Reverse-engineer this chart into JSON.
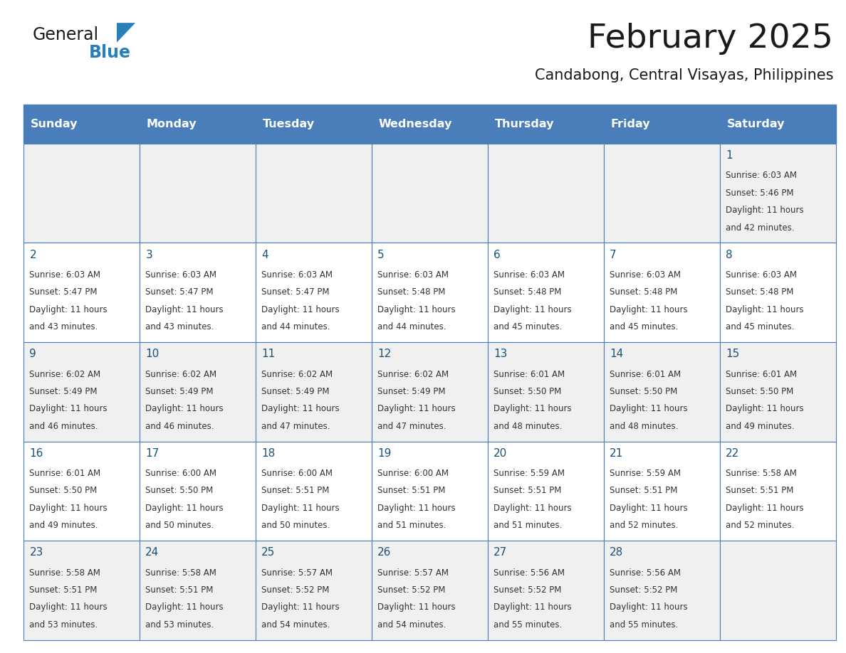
{
  "title": "February 2025",
  "subtitle": "Candabong, Central Visayas, Philippines",
  "days_of_week": [
    "Sunday",
    "Monday",
    "Tuesday",
    "Wednesday",
    "Thursday",
    "Friday",
    "Saturday"
  ],
  "header_bg": "#4a7eba",
  "header_text": "#ffffff",
  "row_bg_odd": "#f0f0f0",
  "row_bg_even": "#ffffff",
  "cell_text_color": "#333333",
  "day_num_color": "#1a5276",
  "border_color": "#4a7eba",
  "title_color": "#1a1a1a",
  "subtitle_color": "#1a1a1a",
  "logo_general_color": "#1a1a1a",
  "logo_blue_color": "#2980b9",
  "calendar": [
    [
      null,
      null,
      null,
      null,
      null,
      null,
      {
        "day": 1,
        "sunrise": "6:03 AM",
        "sunset": "5:46 PM",
        "daylight_line1": "Daylight: 11 hours",
        "daylight_line2": "and 42 minutes."
      }
    ],
    [
      {
        "day": 2,
        "sunrise": "6:03 AM",
        "sunset": "5:47 PM",
        "daylight_line1": "Daylight: 11 hours",
        "daylight_line2": "and 43 minutes."
      },
      {
        "day": 3,
        "sunrise": "6:03 AM",
        "sunset": "5:47 PM",
        "daylight_line1": "Daylight: 11 hours",
        "daylight_line2": "and 43 minutes."
      },
      {
        "day": 4,
        "sunrise": "6:03 AM",
        "sunset": "5:47 PM",
        "daylight_line1": "Daylight: 11 hours",
        "daylight_line2": "and 44 minutes."
      },
      {
        "day": 5,
        "sunrise": "6:03 AM",
        "sunset": "5:48 PM",
        "daylight_line1": "Daylight: 11 hours",
        "daylight_line2": "and 44 minutes."
      },
      {
        "day": 6,
        "sunrise": "6:03 AM",
        "sunset": "5:48 PM",
        "daylight_line1": "Daylight: 11 hours",
        "daylight_line2": "and 45 minutes."
      },
      {
        "day": 7,
        "sunrise": "6:03 AM",
        "sunset": "5:48 PM",
        "daylight_line1": "Daylight: 11 hours",
        "daylight_line2": "and 45 minutes."
      },
      {
        "day": 8,
        "sunrise": "6:03 AM",
        "sunset": "5:48 PM",
        "daylight_line1": "Daylight: 11 hours",
        "daylight_line2": "and 45 minutes."
      }
    ],
    [
      {
        "day": 9,
        "sunrise": "6:02 AM",
        "sunset": "5:49 PM",
        "daylight_line1": "Daylight: 11 hours",
        "daylight_line2": "and 46 minutes."
      },
      {
        "day": 10,
        "sunrise": "6:02 AM",
        "sunset": "5:49 PM",
        "daylight_line1": "Daylight: 11 hours",
        "daylight_line2": "and 46 minutes."
      },
      {
        "day": 11,
        "sunrise": "6:02 AM",
        "sunset": "5:49 PM",
        "daylight_line1": "Daylight: 11 hours",
        "daylight_line2": "and 47 minutes."
      },
      {
        "day": 12,
        "sunrise": "6:02 AM",
        "sunset": "5:49 PM",
        "daylight_line1": "Daylight: 11 hours",
        "daylight_line2": "and 47 minutes."
      },
      {
        "day": 13,
        "sunrise": "6:01 AM",
        "sunset": "5:50 PM",
        "daylight_line1": "Daylight: 11 hours",
        "daylight_line2": "and 48 minutes."
      },
      {
        "day": 14,
        "sunrise": "6:01 AM",
        "sunset": "5:50 PM",
        "daylight_line1": "Daylight: 11 hours",
        "daylight_line2": "and 48 minutes."
      },
      {
        "day": 15,
        "sunrise": "6:01 AM",
        "sunset": "5:50 PM",
        "daylight_line1": "Daylight: 11 hours",
        "daylight_line2": "and 49 minutes."
      }
    ],
    [
      {
        "day": 16,
        "sunrise": "6:01 AM",
        "sunset": "5:50 PM",
        "daylight_line1": "Daylight: 11 hours",
        "daylight_line2": "and 49 minutes."
      },
      {
        "day": 17,
        "sunrise": "6:00 AM",
        "sunset": "5:50 PM",
        "daylight_line1": "Daylight: 11 hours",
        "daylight_line2": "and 50 minutes."
      },
      {
        "day": 18,
        "sunrise": "6:00 AM",
        "sunset": "5:51 PM",
        "daylight_line1": "Daylight: 11 hours",
        "daylight_line2": "and 50 minutes."
      },
      {
        "day": 19,
        "sunrise": "6:00 AM",
        "sunset": "5:51 PM",
        "daylight_line1": "Daylight: 11 hours",
        "daylight_line2": "and 51 minutes."
      },
      {
        "day": 20,
        "sunrise": "5:59 AM",
        "sunset": "5:51 PM",
        "daylight_line1": "Daylight: 11 hours",
        "daylight_line2": "and 51 minutes."
      },
      {
        "day": 21,
        "sunrise": "5:59 AM",
        "sunset": "5:51 PM",
        "daylight_line1": "Daylight: 11 hours",
        "daylight_line2": "and 52 minutes."
      },
      {
        "day": 22,
        "sunrise": "5:58 AM",
        "sunset": "5:51 PM",
        "daylight_line1": "Daylight: 11 hours",
        "daylight_line2": "and 52 minutes."
      }
    ],
    [
      {
        "day": 23,
        "sunrise": "5:58 AM",
        "sunset": "5:51 PM",
        "daylight_line1": "Daylight: 11 hours",
        "daylight_line2": "and 53 minutes."
      },
      {
        "day": 24,
        "sunrise": "5:58 AM",
        "sunset": "5:51 PM",
        "daylight_line1": "Daylight: 11 hours",
        "daylight_line2": "and 53 minutes."
      },
      {
        "day": 25,
        "sunrise": "5:57 AM",
        "sunset": "5:52 PM",
        "daylight_line1": "Daylight: 11 hours",
        "daylight_line2": "and 54 minutes."
      },
      {
        "day": 26,
        "sunrise": "5:57 AM",
        "sunset": "5:52 PM",
        "daylight_line1": "Daylight: 11 hours",
        "daylight_line2": "and 54 minutes."
      },
      {
        "day": 27,
        "sunrise": "5:56 AM",
        "sunset": "5:52 PM",
        "daylight_line1": "Daylight: 11 hours",
        "daylight_line2": "and 55 minutes."
      },
      {
        "day": 28,
        "sunrise": "5:56 AM",
        "sunset": "5:52 PM",
        "daylight_line1": "Daylight: 11 hours",
        "daylight_line2": "and 55 minutes."
      },
      null
    ]
  ]
}
